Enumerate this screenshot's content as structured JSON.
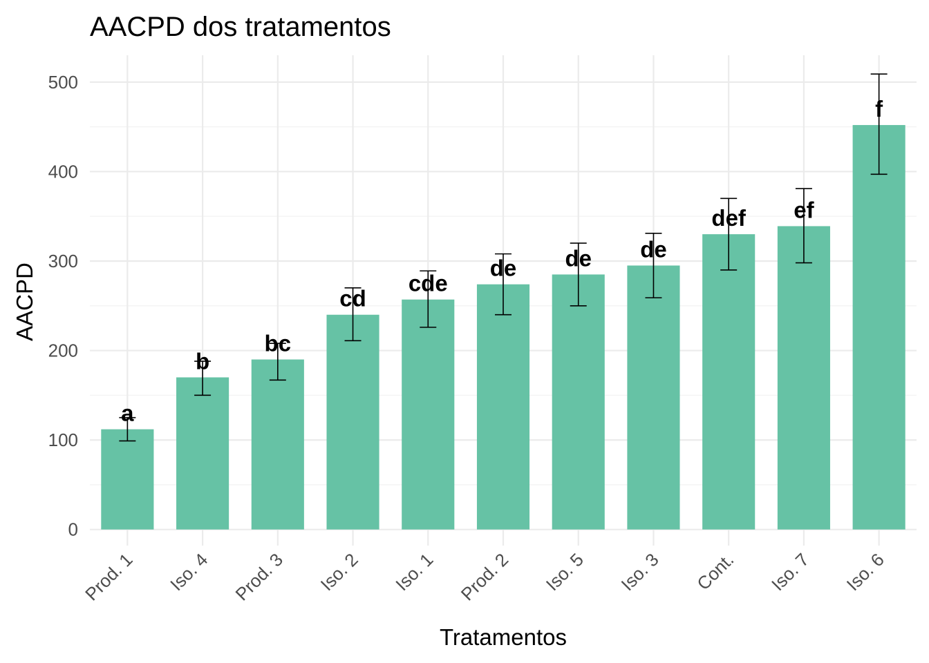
{
  "chart_data": {
    "type": "bar",
    "title": "AACPD dos tratamentos",
    "xlabel": "Tratamentos",
    "ylabel": "AACPD",
    "ylim": [
      -18,
      530
    ],
    "yticks": [
      0,
      100,
      200,
      300,
      400,
      500
    ],
    "grid": true,
    "bar_color": "#66c2a5",
    "categories": [
      "Prod. 1",
      "Iso. 4",
      "Prod. 3",
      "Iso. 2",
      "Iso. 1",
      "Prod. 2",
      "Iso. 5",
      "Iso. 3",
      "Cont.",
      "Iso. 7",
      "Iso. 6"
    ],
    "values": [
      112,
      170,
      190,
      240,
      257,
      274,
      285,
      295,
      330,
      339,
      452
    ],
    "error_low": [
      99,
      150,
      167,
      211,
      226,
      240,
      250,
      259,
      290,
      298,
      397
    ],
    "error_high": [
      125,
      188,
      208,
      270,
      289,
      308,
      320,
      331,
      370,
      381,
      509
    ],
    "group_letters": [
      "a",
      "b",
      "bc",
      "cd",
      "cde",
      "de",
      "de",
      "de",
      "def",
      "ef",
      "f"
    ]
  }
}
